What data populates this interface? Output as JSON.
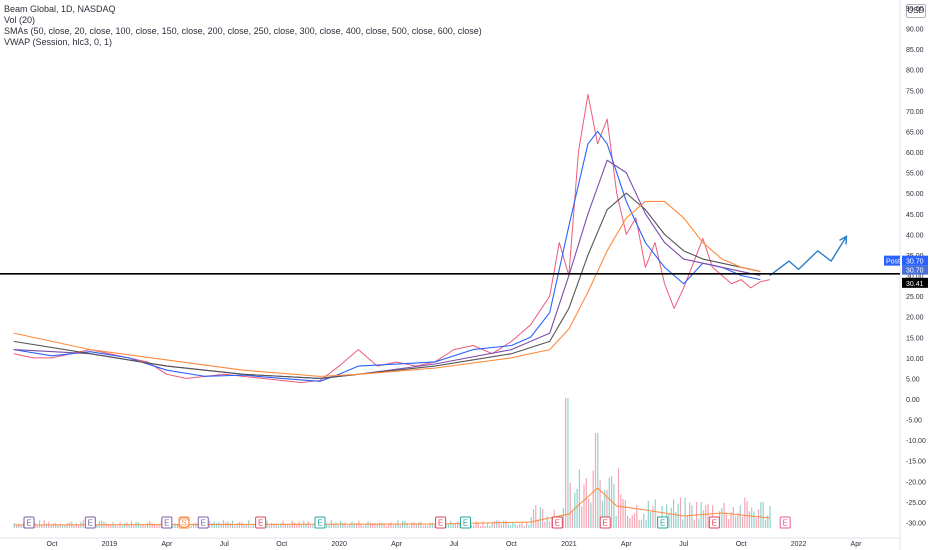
{
  "legend": {
    "symbol": "Beam Global, 1D, NASDAQ",
    "volume": "Vol (20)",
    "smas": "SMAs (50, close, 20, close, 100, close, 150, close, 200, close, 250, close, 300, close, 400, close, 500, close, 600, close)",
    "vwap": "VWAP (Session, hlc3, 0, 1)"
  },
  "currency": "USD",
  "colors": {
    "price": "#ec5b7a",
    "sma_fast": "#2962ff",
    "sma_mid": "#7b4ea8",
    "sma_slow": "#555555",
    "sma_long": "#ff8a3d",
    "projection": "#2a7fc9",
    "hline": "#000000",
    "vol_up": "#8fd3cc",
    "vol_down": "#f4a6b3"
  },
  "price_tags": {
    "post_label": "Post",
    "post_value": "30.70",
    "second_value": "30.70",
    "line_value": "30.41"
  },
  "chart_data": {
    "type": "line",
    "y_ticks": [
      "95.00",
      "90.00",
      "85.00",
      "80.00",
      "75.00",
      "70.00",
      "65.00",
      "60.00",
      "55.00",
      "50.00",
      "45.00",
      "40.00",
      "35.00",
      "30.00",
      "25.00",
      "20.00",
      "15.00",
      "10.00",
      "5.00",
      "0.00",
      "-5.00",
      "-10.00",
      "-15.00",
      "-20.00",
      "-25.00",
      "-30.00"
    ],
    "ylim": [
      -32,
      98
    ],
    "x_ticks": [
      "Oct",
      "2019",
      "Apr",
      "Jul",
      "Oct",
      "2020",
      "Apr",
      "Jul",
      "Oct",
      "2021",
      "Apr",
      "Jul",
      "Oct",
      "2022",
      "Apr"
    ],
    "x_tick_months": [
      0,
      3,
      6,
      9,
      12,
      15,
      18,
      21,
      24,
      27,
      30,
      33,
      36,
      39,
      42
    ],
    "xlim": [
      -2,
      45
    ],
    "horizontal_line": 30.41,
    "series": [
      {
        "key": "price",
        "values": [
          [
            -2,
            11
          ],
          [
            -1,
            10
          ],
          [
            0,
            10
          ],
          [
            1,
            11
          ],
          [
            2,
            12
          ],
          [
            3,
            11
          ],
          [
            4,
            10
          ],
          [
            5,
            9
          ],
          [
            6,
            6
          ],
          [
            7,
            5
          ],
          [
            8,
            5.5
          ],
          [
            9,
            6
          ],
          [
            10,
            5.5
          ],
          [
            11,
            5
          ],
          [
            12,
            4.5
          ],
          [
            13,
            4
          ],
          [
            14,
            4.5
          ],
          [
            15,
            8
          ],
          [
            16,
            12
          ],
          [
            17,
            8
          ],
          [
            18,
            9
          ],
          [
            19,
            8
          ],
          [
            20,
            9
          ],
          [
            21,
            12
          ],
          [
            22,
            13
          ],
          [
            23,
            11
          ],
          [
            24,
            14
          ],
          [
            25,
            18
          ],
          [
            26,
            25
          ],
          [
            26.5,
            38
          ],
          [
            27,
            30
          ],
          [
            27.5,
            60
          ],
          [
            28,
            74
          ],
          [
            28.5,
            62
          ],
          [
            29,
            68
          ],
          [
            29.5,
            50
          ],
          [
            30,
            40
          ],
          [
            30.5,
            44
          ],
          [
            31,
            32
          ],
          [
            31.5,
            38
          ],
          [
            32,
            28
          ],
          [
            32.5,
            22
          ],
          [
            33,
            27
          ],
          [
            33.5,
            33
          ],
          [
            34,
            39
          ],
          [
            34.5,
            32
          ],
          [
            35,
            30
          ],
          [
            35.5,
            28
          ],
          [
            36,
            29
          ],
          [
            36.5,
            27
          ],
          [
            37,
            28.5
          ],
          [
            37.5,
            29
          ]
        ]
      },
      {
        "key": "sma_fast",
        "values": [
          [
            -2,
            12
          ],
          [
            0,
            10.5
          ],
          [
            2,
            11.5
          ],
          [
            4,
            10
          ],
          [
            6,
            7
          ],
          [
            8,
            5.5
          ],
          [
            10,
            5.8
          ],
          [
            12,
            5
          ],
          [
            14,
            4.3
          ],
          [
            15,
            6
          ],
          [
            16,
            8
          ],
          [
            18,
            8.5
          ],
          [
            20,
            9
          ],
          [
            22,
            12
          ],
          [
            24,
            13
          ],
          [
            25,
            15
          ],
          [
            26,
            21
          ],
          [
            27,
            42
          ],
          [
            28,
            62
          ],
          [
            28.5,
            65
          ],
          [
            29,
            62
          ],
          [
            30,
            48
          ],
          [
            31,
            38
          ],
          [
            32,
            32
          ],
          [
            33,
            28
          ],
          [
            34,
            33
          ],
          [
            35,
            32
          ],
          [
            36,
            30
          ],
          [
            37,
            29
          ]
        ]
      },
      {
        "key": "sma_mid",
        "values": [
          [
            -2,
            12
          ],
          [
            2,
            11
          ],
          [
            6,
            8
          ],
          [
            10,
            6
          ],
          [
            14,
            5
          ],
          [
            16,
            6
          ],
          [
            20,
            8.5
          ],
          [
            24,
            12
          ],
          [
            26,
            16
          ],
          [
            27,
            30
          ],
          [
            28,
            45
          ],
          [
            29,
            58
          ],
          [
            30,
            55
          ],
          [
            31,
            45
          ],
          [
            32,
            38
          ],
          [
            33,
            34
          ],
          [
            34,
            33
          ],
          [
            35,
            32
          ],
          [
            36,
            31
          ],
          [
            37,
            30
          ]
        ]
      },
      {
        "key": "sma_slow",
        "values": [
          [
            -2,
            14
          ],
          [
            2,
            11
          ],
          [
            6,
            8
          ],
          [
            10,
            6
          ],
          [
            14,
            5
          ],
          [
            16,
            6
          ],
          [
            20,
            8
          ],
          [
            24,
            11
          ],
          [
            26,
            14
          ],
          [
            27,
            22
          ],
          [
            28,
            35
          ],
          [
            29,
            46
          ],
          [
            30,
            50
          ],
          [
            31,
            46
          ],
          [
            32,
            40
          ],
          [
            33,
            36
          ],
          [
            34,
            34
          ],
          [
            35,
            33
          ],
          [
            36,
            32
          ],
          [
            37,
            31
          ]
        ]
      },
      {
        "key": "sma_long",
        "values": [
          [
            -2,
            16
          ],
          [
            2,
            12
          ],
          [
            6,
            9.5
          ],
          [
            10,
            7
          ],
          [
            14,
            5.5
          ],
          [
            16,
            6
          ],
          [
            20,
            7.5
          ],
          [
            24,
            10
          ],
          [
            26,
            12
          ],
          [
            27,
            17
          ],
          [
            28,
            26
          ],
          [
            29,
            36
          ],
          [
            30,
            44
          ],
          [
            31,
            48
          ],
          [
            32,
            48
          ],
          [
            33,
            44
          ],
          [
            34,
            38
          ],
          [
            35,
            34
          ],
          [
            36,
            32
          ],
          [
            37,
            31
          ]
        ]
      },
      {
        "key": "projection",
        "values": [
          [
            37.5,
            30
          ],
          [
            38.5,
            33.5
          ],
          [
            39,
            31.5
          ],
          [
            40,
            36
          ],
          [
            40.7,
            33.5
          ],
          [
            41.5,
            39.5
          ]
        ]
      }
    ],
    "earnings_markers": [
      {
        "month": -1.2,
        "label": "E",
        "color": "#7b5ea7"
      },
      {
        "month": 2.0,
        "label": "E",
        "color": "#7b5ea7"
      },
      {
        "month": 6.0,
        "label": "E",
        "color": "#7b5ea7"
      },
      {
        "month": 6.9,
        "label": "S",
        "color": "#ff8a3d"
      },
      {
        "month": 7.9,
        "label": "E",
        "color": "#7b5ea7"
      },
      {
        "month": 10.9,
        "label": "E",
        "color": "#e0435d"
      },
      {
        "month": 14.0,
        "label": "E",
        "color": "#26a69a"
      },
      {
        "month": 20.3,
        "label": "E",
        "color": "#e0435d"
      },
      {
        "month": 21.6,
        "label": "E",
        "color": "#26a69a"
      },
      {
        "month": 26.4,
        "label": "E",
        "color": "#e0435d"
      },
      {
        "month": 28.9,
        "label": "E",
        "color": "#e0435d"
      },
      {
        "month": 31.9,
        "label": "E",
        "color": "#26a69a"
      },
      {
        "month": 34.6,
        "label": "E",
        "color": "#e0435d"
      },
      {
        "month": 38.3,
        "label": "E",
        "color": "#ec5b9a"
      }
    ]
  }
}
